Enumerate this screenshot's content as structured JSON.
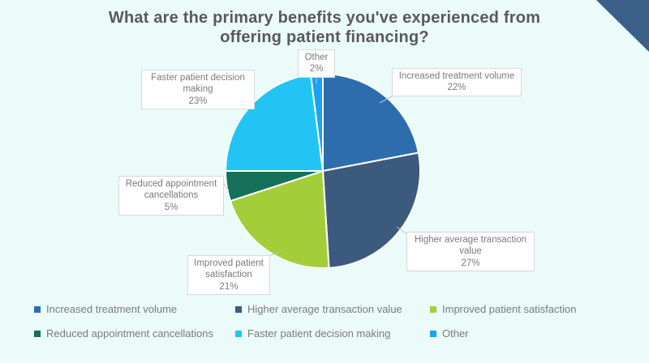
{
  "slide": {
    "background_color": "#ebfbfa",
    "corner_accent_color": "#3a5f88"
  },
  "chart_data": {
    "type": "pie",
    "title": "What are the primary benefits you've experienced from offering patient financing?",
    "title_color": "#595959",
    "direction": "clockwise",
    "start_angle_deg": 0,
    "legend_position": "bottom",
    "slices": [
      {
        "label": "Increased treatment volume",
        "value": 22,
        "percent_label": "22%",
        "color": "#2e6dad"
      },
      {
        "label": "Higher average transaction value",
        "value": 27,
        "percent_label": "27%",
        "color": "#3b5a7e"
      },
      {
        "label": "Improved patient satisfaction",
        "value": 21,
        "percent_label": "21%",
        "color": "#a4ce39"
      },
      {
        "label": "Reduced appointment cancellations",
        "value": 5,
        "percent_label": "5%",
        "color": "#15705a"
      },
      {
        "label": "Faster patient decision making",
        "value": 23,
        "percent_label": "23%",
        "color": "#22c4f4"
      },
      {
        "label": "Other",
        "value": 2,
        "percent_label": "2%",
        "color": "#18a4f2"
      }
    ]
  }
}
